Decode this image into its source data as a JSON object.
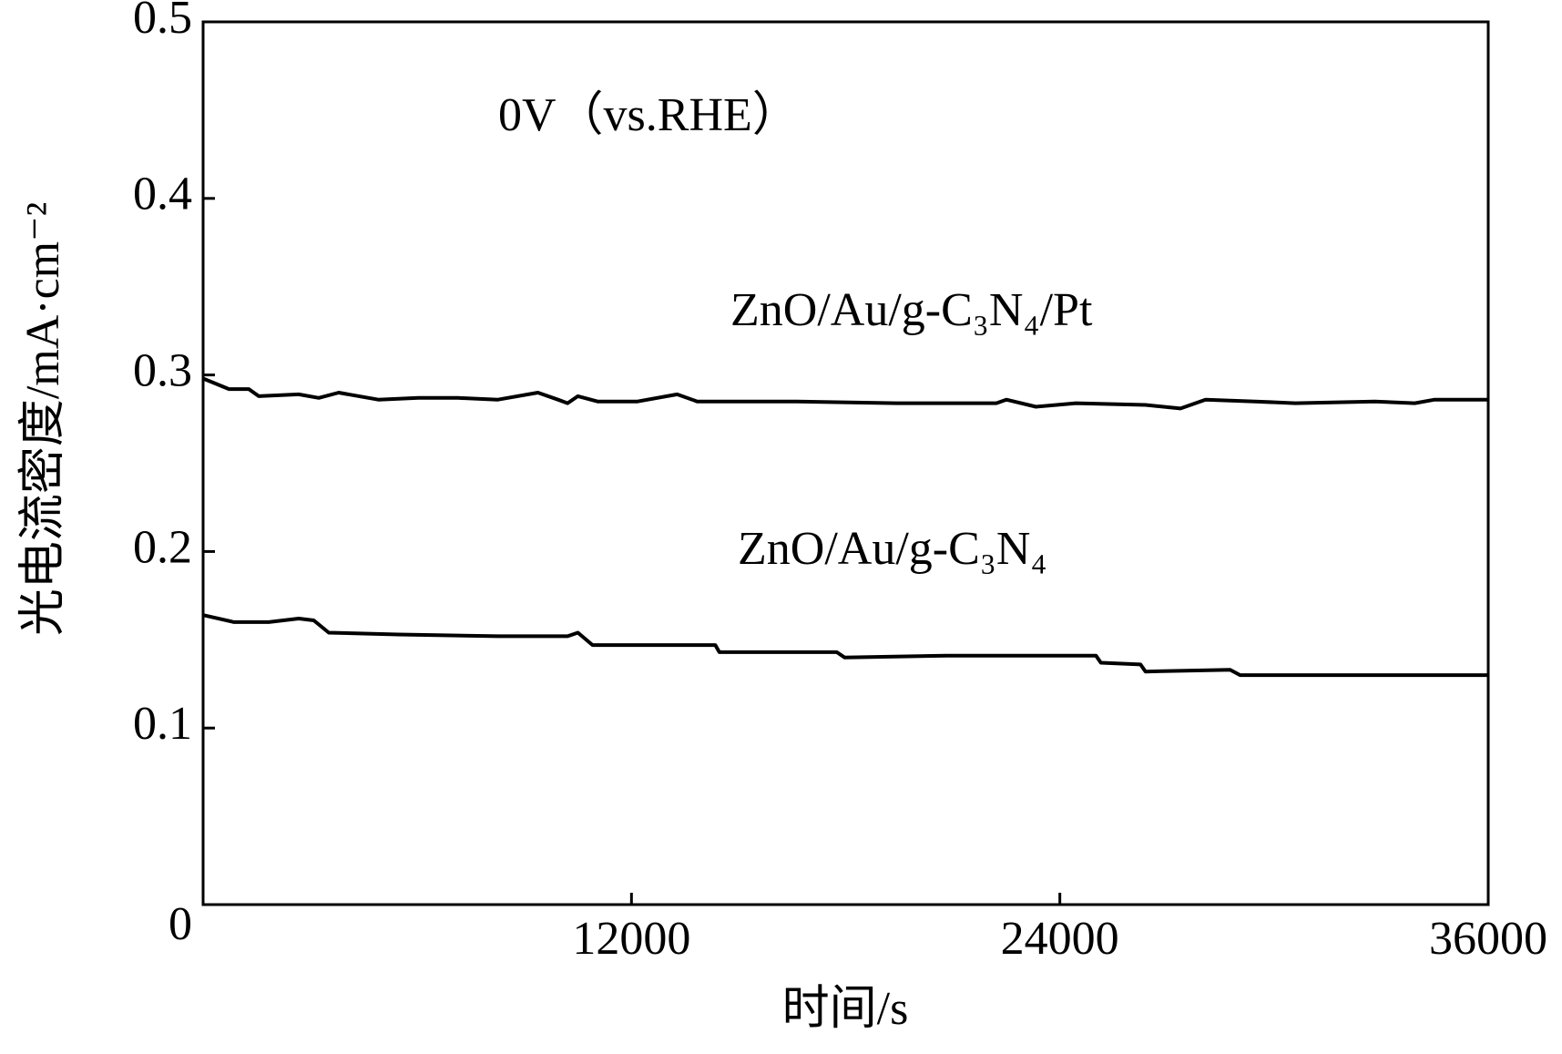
{
  "chart_data": {
    "type": "line",
    "xlabel": "时间/s",
    "ylabel": "光电流密度/mA·cm⁻²",
    "annotation": "0V（vs.RHE）",
    "xlim": [
      0,
      36000
    ],
    "xticks": [
      0,
      12000,
      24000,
      36000
    ],
    "ylim": [
      0,
      0.5
    ],
    "yticks": [
      0.1,
      0.2,
      0.3,
      0.4,
      0.5
    ],
    "series": [
      {
        "name": "ZnO/Au/g-C₃N₄/Pt",
        "color": "#000000",
        "x": [
          0,
          725,
          1280,
          1560,
          2680,
          3240,
          3800,
          4910,
          6030,
          7140,
          8260,
          9380,
          9940,
          10210,
          10500,
          11050,
          12170,
          13280,
          13840,
          16630,
          19430,
          22220,
          22500,
          23330,
          24450,
          26400,
          27380,
          28080,
          29470,
          30590,
          32820,
          33940,
          34500,
          36000
        ],
        "values": [
          0.298,
          0.292,
          0.292,
          0.288,
          0.289,
          0.287,
          0.29,
          0.286,
          0.287,
          0.287,
          0.286,
          0.29,
          0.286,
          0.284,
          0.288,
          0.285,
          0.285,
          0.289,
          0.285,
          0.285,
          0.284,
          0.284,
          0.286,
          0.282,
          0.284,
          0.283,
          0.281,
          0.286,
          0.285,
          0.284,
          0.285,
          0.284,
          0.286,
          0.286
        ]
      },
      {
        "name": "ZnO/Au/g-C₃N₄",
        "color": "#000000",
        "x": [
          0,
          865,
          1840,
          2680,
          3100,
          3520,
          5470,
          8260,
          10210,
          10500,
          10910,
          13840,
          14350,
          14460,
          17750,
          17970,
          20820,
          25010,
          25150,
          26260,
          26400,
          28770,
          29050,
          36000
        ],
        "values": [
          0.164,
          0.16,
          0.16,
          0.162,
          0.161,
          0.154,
          0.153,
          0.152,
          0.152,
          0.154,
          0.147,
          0.147,
          0.147,
          0.143,
          0.143,
          0.14,
          0.141,
          0.141,
          0.137,
          0.136,
          0.132,
          0.133,
          0.13,
          0.13
        ]
      }
    ]
  }
}
